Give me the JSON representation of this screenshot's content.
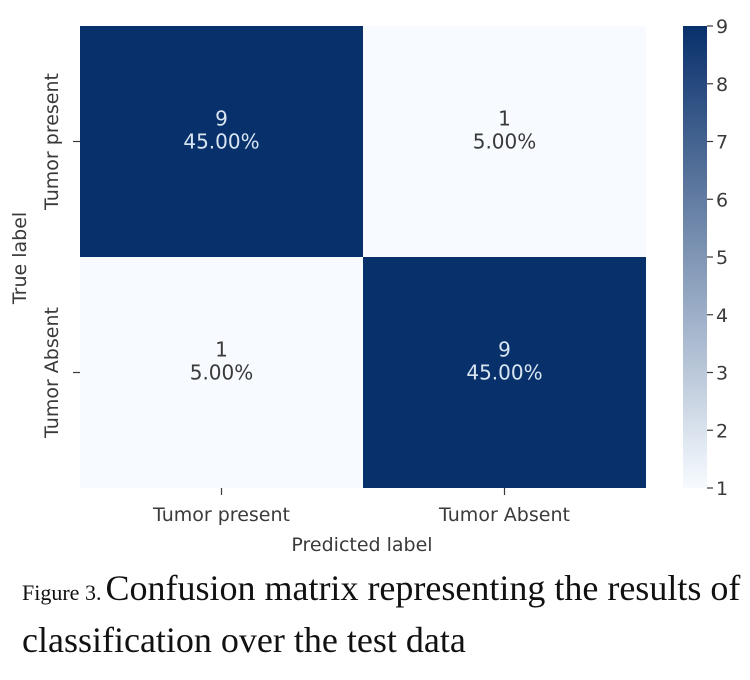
{
  "chart_data": {
    "type": "heatmap",
    "xlabel": "Predicted label",
    "ylabel": "True label",
    "x_categories": [
      "Tumor present",
      "Tumor Absent"
    ],
    "y_categories": [
      "Tumor present",
      "Tumor Absent"
    ],
    "cells": [
      [
        {
          "count": 9,
          "label": "9",
          "percent": "45.00%"
        },
        {
          "count": 1,
          "label": "1",
          "percent": "5.00%"
        }
      ],
      [
        {
          "count": 1,
          "label": "1",
          "percent": "5.00%"
        },
        {
          "count": 9,
          "label": "9",
          "percent": "45.00%"
        }
      ]
    ],
    "colorbar": {
      "min": 1,
      "max": 9,
      "ticks": [
        "1",
        "2",
        "3",
        "4",
        "5",
        "6",
        "7",
        "8",
        "9"
      ],
      "colormap": "Blues",
      "low_color": "#f7fbff",
      "high_color": "#08306b"
    },
    "annotation_color_dark_cell": "#d9e6f2",
    "annotation_color_light_cell": "#3a3a3a"
  },
  "caption": {
    "figure_label": "Figure 3.",
    "text": "Confusion matrix representing the results of classification over the test data"
  }
}
